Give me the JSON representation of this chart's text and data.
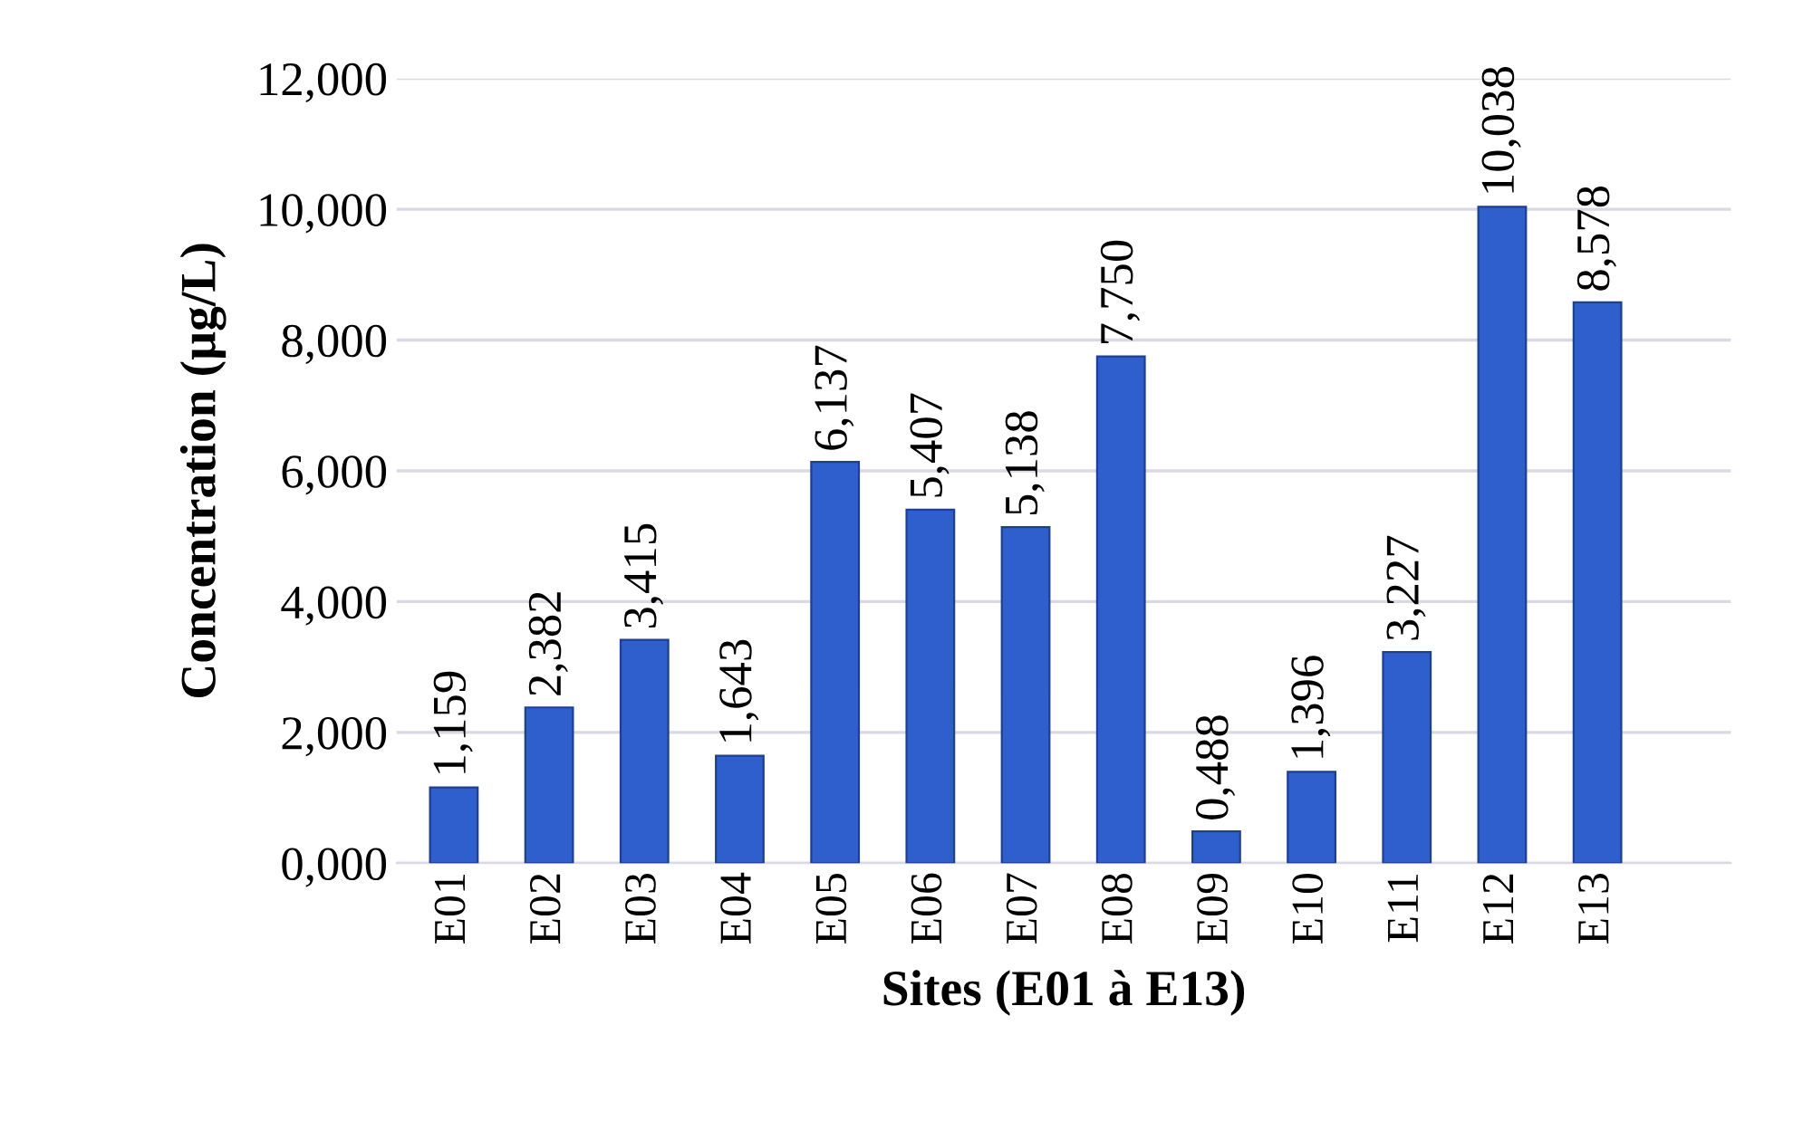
{
  "chart_data": {
    "type": "bar",
    "xlabel": "Sites (E01 à E13)",
    "ylabel": "Concentration (µg/L)",
    "categories": [
      "E01",
      "E02",
      "E03",
      "E04",
      "E05",
      "E06",
      "E07",
      "E08",
      "E09",
      "E10",
      "E11",
      "E12",
      "E13"
    ],
    "values": [
      1.159,
      2.382,
      3.415,
      1.643,
      6.137,
      5.407,
      5.138,
      7.75,
      0.488,
      1.396,
      3.227,
      10.038,
      8.578
    ],
    "value_labels": [
      "1,159",
      "2,382",
      "3,415",
      "1,643",
      "6,137",
      "5,407",
      "5,138",
      "7,750",
      "0,488",
      "1,396",
      "3,227",
      "10,038",
      "8,578"
    ],
    "color": "#2f5fcc",
    "ylim": [
      0,
      12
    ],
    "yticks": [
      {
        "value": 0,
        "label": "0,000"
      },
      {
        "value": 2,
        "label": "2,000"
      },
      {
        "value": 4,
        "label": "4,000"
      },
      {
        "value": 6,
        "label": "6,000"
      },
      {
        "value": 8,
        "label": "8,000"
      },
      {
        "value": 10,
        "label": "10,000"
      },
      {
        "value": 12,
        "label": "12,000"
      }
    ],
    "grid": "y",
    "legend": false
  }
}
